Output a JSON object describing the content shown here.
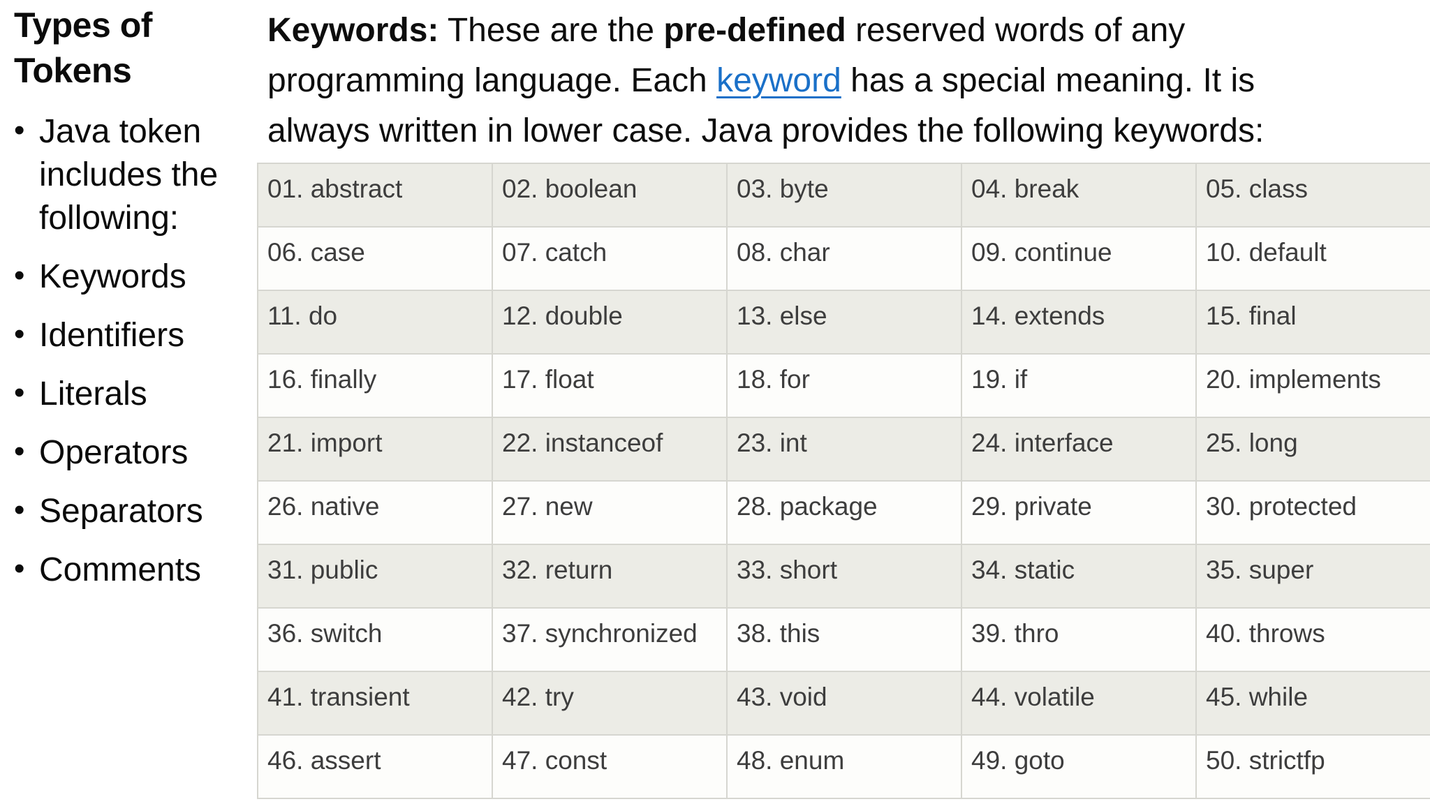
{
  "sidebar": {
    "title": "Types of Tokens",
    "bullet_glyph": "•",
    "intro_item": "Java token includes the following:",
    "items": [
      "Keywords",
      "Identifiers",
      "Literals",
      "Operators",
      "Separators",
      "Comments"
    ]
  },
  "paragraph": {
    "line1": {
      "bold1": "Keywords:",
      "text1": " These are the ",
      "bold2": "pre-defined",
      "text2": " reserved words of any"
    },
    "line2": {
      "text1": "programming language. Each ",
      "link": "keyword",
      "text2": " has a special meaning. It is"
    },
    "line3": {
      "text": "always written in lower case. Java provides the following keywords:"
    }
  },
  "colors": {
    "link_blue": "#1a70c8",
    "row_stripe": "#ecece6",
    "table_border": "#d6d6d0",
    "table_text": "#3d3d3d",
    "body_text": "#0b0b0b"
  },
  "table": {
    "rows": [
      [
        "01. abstract",
        "02. boolean",
        "03. byte",
        "04. break",
        "05. class"
      ],
      [
        "06. case",
        "07. catch",
        "08. char",
        "09. continue",
        "10. default"
      ],
      [
        "11. do",
        "12. double",
        "13. else",
        "14. extends",
        "15. final"
      ],
      [
        "16. finally",
        "17. float",
        "18. for",
        "19. if",
        "20. implements"
      ],
      [
        "21. import",
        "22. instanceof",
        "23. int",
        "24. interface",
        "25. long"
      ],
      [
        "26. native",
        "27. new",
        "28. package",
        "29. private",
        "30. protected"
      ],
      [
        "31. public",
        "32. return",
        "33. short",
        "34. static",
        "35. super"
      ],
      [
        "36. switch",
        "37. synchronized",
        "38. this",
        "39. thro",
        "40. throws"
      ],
      [
        "41. transient",
        "42. try",
        "43. void",
        "44. volatile",
        "45. while"
      ],
      [
        "46. assert",
        "47. const",
        "48. enum",
        "49. goto",
        "50. strictfp"
      ]
    ]
  }
}
